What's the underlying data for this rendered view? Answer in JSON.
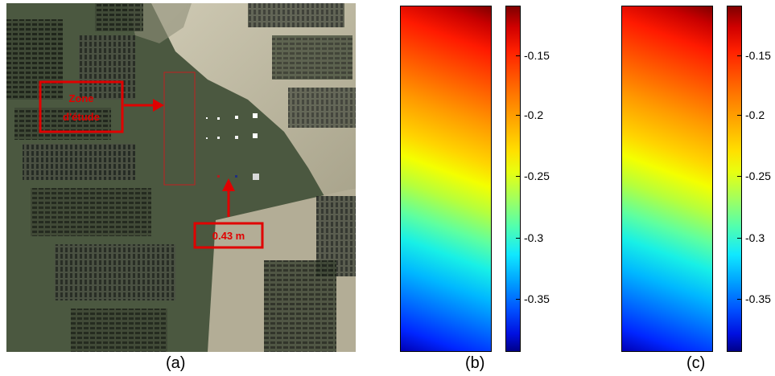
{
  "panel_a": {
    "zone_label_line1": "Zone",
    "zone_label_line2": "d'étude",
    "depth_label": "0.43 m",
    "caption": "(a)"
  },
  "panel_b": {
    "caption": "(b)"
  },
  "panel_c": {
    "caption": "(c)"
  },
  "colorbar_ticks": [
    "-0.15",
    "-0.2",
    "-0.25",
    "-0.3",
    "-0.35"
  ],
  "colors": {
    "annotation_red": "#e00000",
    "sand": "#b8b39a",
    "water": "#4f5a40"
  }
}
